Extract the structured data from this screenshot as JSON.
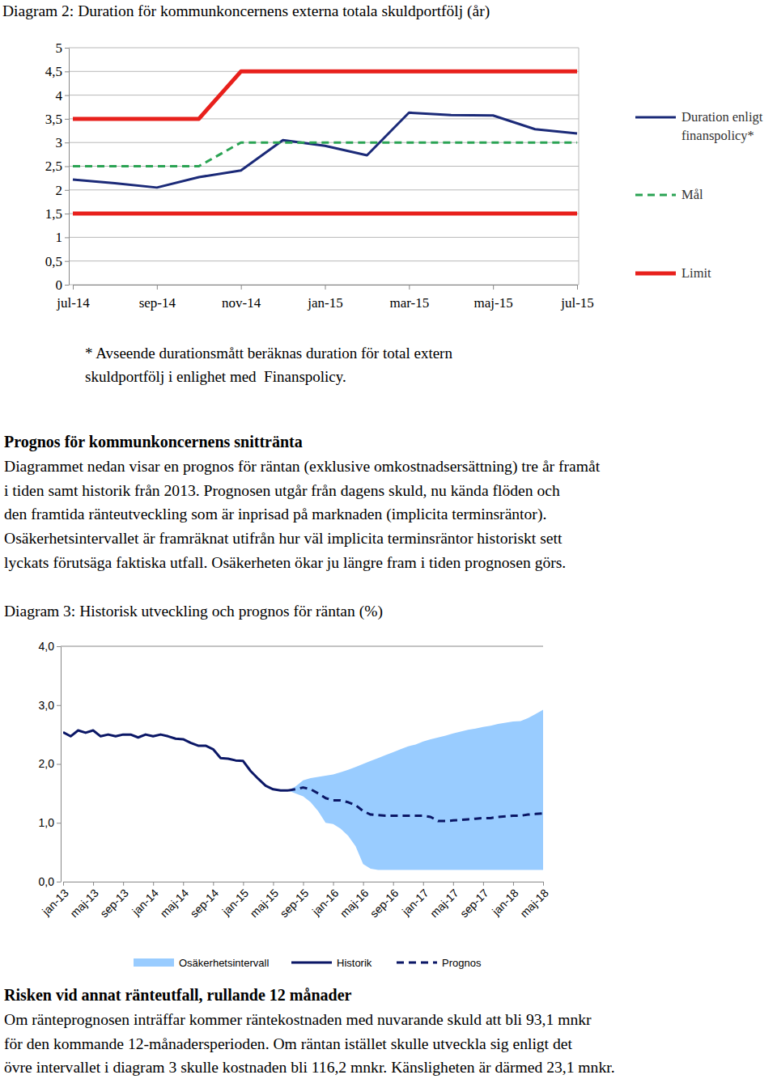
{
  "chart_data": [
    {
      "type": "line",
      "title": "Diagram 2: Duration för kommunkoncernens externa totala skuldportfölj (år)",
      "categories": [
        "jul-14",
        null,
        "sep-14",
        null,
        "nov-14",
        null,
        "jan-15",
        null,
        "mar-15",
        null,
        "maj-15",
        null,
        "jul-15"
      ],
      "series": [
        {
          "name": "Duration enligt finanspolicy*",
          "color": "#1b2a78",
          "line_style": "solid",
          "values": [
            2.22,
            2.14,
            2.05,
            2.27,
            2.41,
            3.05,
            2.93,
            2.73,
            3.63,
            3.58,
            3.57,
            3.28,
            3.19
          ]
        },
        {
          "name": "Mål",
          "color": "#2aa353",
          "line_style": "dashed",
          "values": [
            2.5,
            2.5,
            2.5,
            2.5,
            3,
            3,
            3,
            3,
            3,
            3,
            3,
            3,
            3
          ]
        },
        {
          "name": "Limit",
          "color": "#e8201c",
          "line_style": "solid",
          "values": [
            3.5,
            3.5,
            3.5,
            3.5,
            4.5,
            4.5,
            4.5,
            4.5,
            4.5,
            4.5,
            4.5,
            4.5,
            4.5
          ]
        },
        {
          "name": "Limit",
          "color": "#e8201c",
          "line_style": "solid",
          "values": [
            1.5,
            1.5,
            1.5,
            1.5,
            1.5,
            1.5,
            1.5,
            1.5,
            1.5,
            1.5,
            1.5,
            1.5,
            1.5
          ]
        }
      ],
      "ylim": [
        0,
        5
      ],
      "yticks": [
        0,
        {
          "value": 0.5,
          "label": "0,5"
        },
        1,
        {
          "value": 1.5,
          "label": "1,5"
        },
        2,
        {
          "value": 2.5,
          "label": "2,5"
        },
        3,
        {
          "value": 3.5,
          "label": "3,5"
        },
        4,
        {
          "value": 4.5,
          "label": "4,5"
        },
        5
      ],
      "grid": true,
      "legend": "right"
    },
    {
      "type": "line",
      "title": "Diagram 3: Historisk utveckling och prognos för räntan (%)",
      "categories": [
        "jan-13",
        null,
        null,
        null,
        "maj-13",
        null,
        null,
        null,
        "sep-13",
        null,
        null,
        null,
        "jan-14",
        null,
        null,
        null,
        "maj-14",
        null,
        null,
        null,
        "sep-14",
        null,
        null,
        null,
        "jan-15",
        null,
        null,
        null,
        "maj-15",
        null,
        null,
        null,
        "sep-15",
        null,
        null,
        null,
        "jan-16",
        null,
        null,
        null,
        "maj-16",
        null,
        null,
        null,
        "sep-16",
        null,
        null,
        null,
        "jan-17",
        null,
        null,
        null,
        "maj-17",
        null,
        null,
        null,
        "sep-17",
        null,
        null,
        null,
        "jan-18",
        null,
        null,
        null,
        "maj-18"
      ],
      "series": [
        {
          "name": "Osäkerhetsintervall",
          "type": "area",
          "color": "#99ccff",
          "lower": [
            null,
            null,
            null,
            null,
            null,
            null,
            null,
            null,
            null,
            null,
            null,
            null,
            null,
            null,
            null,
            null,
            null,
            null,
            null,
            null,
            null,
            null,
            null,
            null,
            null,
            null,
            null,
            null,
            null,
            null,
            1.55,
            1.5,
            1.45,
            1.35,
            1.2,
            1.0,
            0.98,
            0.9,
            0.78,
            0.6,
            0.3,
            0.22,
            0.2,
            0.2,
            0.2,
            0.2,
            0.2,
            0.2,
            0.2,
            0.2,
            0.2,
            0.2,
            0.2,
            0.2,
            0.2,
            0.2,
            0.2,
            0.2,
            0.2,
            0.2,
            0.2,
            0.2,
            0.2,
            0.2,
            0.2
          ],
          "upper": [
            null,
            null,
            null,
            null,
            null,
            null,
            null,
            null,
            null,
            null,
            null,
            null,
            null,
            null,
            null,
            null,
            null,
            null,
            null,
            null,
            null,
            null,
            null,
            null,
            null,
            null,
            null,
            null,
            null,
            null,
            1.55,
            1.62,
            1.72,
            1.76,
            1.78,
            1.8,
            1.82,
            1.86,
            1.9,
            1.95,
            2.0,
            2.05,
            2.1,
            2.15,
            2.2,
            2.25,
            2.3,
            2.33,
            2.38,
            2.42,
            2.45,
            2.48,
            2.52,
            2.55,
            2.58,
            2.6,
            2.63,
            2.65,
            2.68,
            2.7,
            2.72,
            2.73,
            2.78,
            2.85,
            2.92
          ]
        },
        {
          "name": "Historik",
          "type": "line",
          "color": "#0b1766",
          "line_style": "solid",
          "values": [
            2.54,
            2.47,
            2.57,
            2.53,
            2.57,
            2.47,
            2.5,
            2.47,
            2.5,
            2.5,
            2.45,
            2.5,
            2.47,
            2.5,
            2.47,
            2.43,
            2.42,
            2.36,
            2.31,
            2.31,
            2.25,
            2.1,
            2.09,
            2.06,
            2.05,
            1.88,
            1.75,
            1.63,
            1.57,
            1.55,
            1.55,
            null,
            null,
            null,
            null,
            null,
            null,
            null,
            null,
            null,
            null,
            null,
            null,
            null,
            null,
            null,
            null,
            null,
            null,
            null,
            null,
            null,
            null,
            null,
            null,
            null,
            null,
            null,
            null,
            null,
            null,
            null,
            null,
            null,
            null
          ]
        },
        {
          "name": "Prognos",
          "type": "line",
          "color": "#0b1766",
          "line_style": "dashed",
          "values": [
            null,
            null,
            null,
            null,
            null,
            null,
            null,
            null,
            null,
            null,
            null,
            null,
            null,
            null,
            null,
            null,
            null,
            null,
            null,
            null,
            null,
            null,
            null,
            null,
            null,
            null,
            null,
            null,
            null,
            null,
            1.55,
            1.57,
            1.6,
            1.57,
            1.5,
            1.42,
            1.38,
            1.38,
            1.35,
            1.3,
            1.2,
            1.14,
            1.13,
            1.12,
            1.12,
            1.12,
            1.12,
            1.12,
            1.12,
            1.1,
            1.03,
            1.03,
            1.04,
            1.05,
            1.06,
            1.07,
            1.08,
            1.08,
            1.1,
            1.11,
            1.12,
            1.12,
            1.14,
            1.15,
            1.16
          ]
        }
      ],
      "ylim": [
        0,
        4
      ],
      "yticks": [
        {
          "value": 0,
          "label": "0,0"
        },
        {
          "value": 1,
          "label": "1,0"
        },
        {
          "value": 2,
          "label": "2,0"
        },
        {
          "value": 3,
          "label": "3,0"
        },
        {
          "value": 4,
          "label": "4,0"
        }
      ],
      "grid": false,
      "legend": "bottom"
    }
  ],
  "document": {
    "footnote": [
      "* Avseende durationsmått beräknas duration för total extern",
      "skuldportfölj i enlighet med  Finanspolicy."
    ],
    "section1": {
      "heading": "Prognos för kommunkoncernens snittränta",
      "lines": [
        "Diagrammet nedan visar en prognos för räntan (exklusive omkostnadsersättning) tre år framåt",
        "i tiden samt historik från 2013. Prognosen utgår från dagens skuld, nu kända flöden och",
        "den framtida ränteutveckling som är inprisad på marknaden (implicita terminsräntor).",
        "Osäkerhetsintervallet är framräknat utifrån hur väl implicita terminsräntor historiskt sett",
        "lyckats förutsäga faktiska utfall. Osäkerheten ökar ju längre fram i tiden prognosen görs."
      ]
    },
    "section2": {
      "heading": "Risken vid annat ränteutfall, rullande 12 månader",
      "lines": [
        "Om ränteprognosen inträffar kommer räntekostnaden med nuvarande skuld att bli 93,1 mnkr",
        "för den kommande 12-månadersperioden. Om räntan istället skulle utveckla sig enligt det",
        "övre intervallet i diagram 3 skulle kostnaden bli 116,2 mnkr. Känsligheten är därmed 23,1 mnkr."
      ]
    }
  }
}
